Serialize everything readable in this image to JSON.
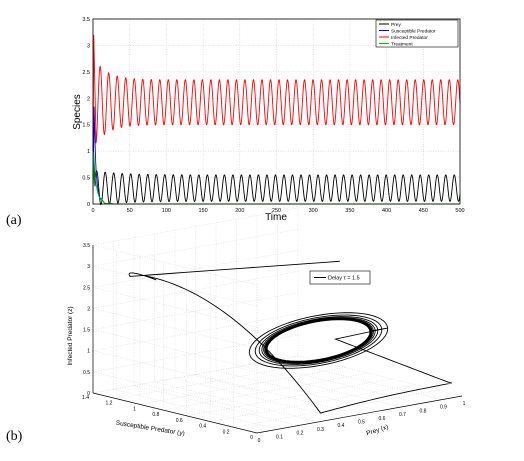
{
  "chart_data": [
    {
      "panel_label": "(a)",
      "type": "line",
      "xlabel": "Time",
      "ylabel": "Species",
      "xlim": [
        0,
        500
      ],
      "ylim": [
        0,
        3.5
      ],
      "xticks": [
        "0",
        "50",
        "100",
        "150",
        "200",
        "250",
        "300",
        "350",
        "400",
        "450",
        "500"
      ],
      "yticks": [
        "0",
        "0.5",
        "1",
        "1.5",
        "2",
        "2.5",
        "3",
        "3.5"
      ],
      "grid": true,
      "legend_position": "top-right",
      "series": [
        {
          "name": "Prey",
          "color": "#000000",
          "initial_peak": 0.9,
          "period": 11.6,
          "settled_min": 0.05,
          "settled_max": 0.55
        },
        {
          "name": "Susceptible Predator",
          "color": "#0000ff",
          "initial_peak": 1.6,
          "decays_to": 0
        },
        {
          "name": "Infected Predator",
          "color": "#ff0000",
          "initial_peak": 3.2,
          "period": 11.6,
          "settled_min": 1.5,
          "settled_max": 2.35
        },
        {
          "name": "Treatment",
          "color": "#00c800",
          "initial_peak": 0.85,
          "decays_to": 0
        }
      ]
    },
    {
      "panel_label": "(b)",
      "type": "line",
      "projection": "3d",
      "xlabel": "Prey (x)",
      "ylabel": "Susceptible Predator (y)",
      "zlabel": "Infected Predator (z)",
      "xlim": [
        0,
        1
      ],
      "ylim": [
        0,
        1.4
      ],
      "zlim": [
        0,
        3.5
      ],
      "xticks": [
        "0",
        "0.1",
        "0.2",
        "0.3",
        "0.4",
        "0.5",
        "0.6",
        "0.7",
        "0.8",
        "0.9",
        "1"
      ],
      "yticks": [
        "0",
        "0.2",
        "0.4",
        "0.6",
        "0.8",
        "1",
        "1.2",
        "1.4"
      ],
      "zticks": [
        "0",
        "0.5",
        "1",
        "1.5",
        "2",
        "2.5",
        "3",
        "3.5"
      ],
      "grid": true,
      "legend_position": "top-right",
      "series": [
        {
          "name": "Delay τ = 1.5",
          "color": "#000000",
          "limit_cycle": {
            "x_range": [
              0.05,
              0.55
            ],
            "y": 0,
            "z_range": [
              1.5,
              2.35
            ]
          }
        }
      ]
    }
  ]
}
